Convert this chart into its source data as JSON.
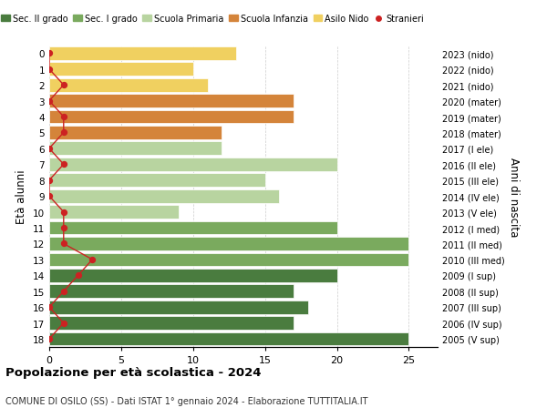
{
  "ages": [
    18,
    17,
    16,
    15,
    14,
    13,
    12,
    11,
    10,
    9,
    8,
    7,
    6,
    5,
    4,
    3,
    2,
    1,
    0
  ],
  "anni_nascita": [
    "2005 (V sup)",
    "2006 (IV sup)",
    "2007 (III sup)",
    "2008 (II sup)",
    "2009 (I sup)",
    "2010 (III med)",
    "2011 (II med)",
    "2012 (I med)",
    "2013 (V ele)",
    "2014 (IV ele)",
    "2015 (III ele)",
    "2016 (II ele)",
    "2017 (I ele)",
    "2018 (mater)",
    "2019 (mater)",
    "2020 (mater)",
    "2021 (nido)",
    "2022 (nido)",
    "2023 (nido)"
  ],
  "bar_values": [
    25,
    17,
    18,
    17,
    20,
    25,
    25,
    20,
    9,
    16,
    15,
    20,
    12,
    12,
    17,
    17,
    11,
    10,
    13
  ],
  "bar_colors": [
    "#4a7c3f",
    "#4a7c3f",
    "#4a7c3f",
    "#4a7c3f",
    "#4a7c3f",
    "#7aaa5e",
    "#7aaa5e",
    "#7aaa5e",
    "#b8d4a0",
    "#b8d4a0",
    "#b8d4a0",
    "#b8d4a0",
    "#b8d4a0",
    "#d4843a",
    "#d4843a",
    "#d4843a",
    "#f0d060",
    "#f0d060",
    "#f0d060"
  ],
  "stranieri_values": [
    0,
    1,
    0,
    1,
    2,
    3,
    1,
    1,
    1,
    0,
    0,
    1,
    0,
    1,
    1,
    0,
    1,
    0,
    0
  ],
  "stranieri_color": "#cc2222",
  "legend_labels": [
    "Sec. II grado",
    "Sec. I grado",
    "Scuola Primaria",
    "Scuola Infanzia",
    "Asilo Nido",
    "Stranieri"
  ],
  "legend_colors": [
    "#4a7c3f",
    "#7aaa5e",
    "#b8d4a0",
    "#d4843a",
    "#f0d060",
    "#cc2222"
  ],
  "ylabel_left": "Età alunni",
  "ylabel_right": "Anni di nascita",
  "title": "Popolazione per età scolastica - 2024",
  "subtitle": "COMUNE DI OSILO (SS) - Dati ISTAT 1° gennaio 2024 - Elaborazione TUTTITALIA.IT",
  "xlim": [
    0,
    27
  ],
  "xticks": [
    0,
    5,
    10,
    15,
    20,
    25
  ],
  "background_color": "#ffffff",
  "grid_color": "#cccccc"
}
